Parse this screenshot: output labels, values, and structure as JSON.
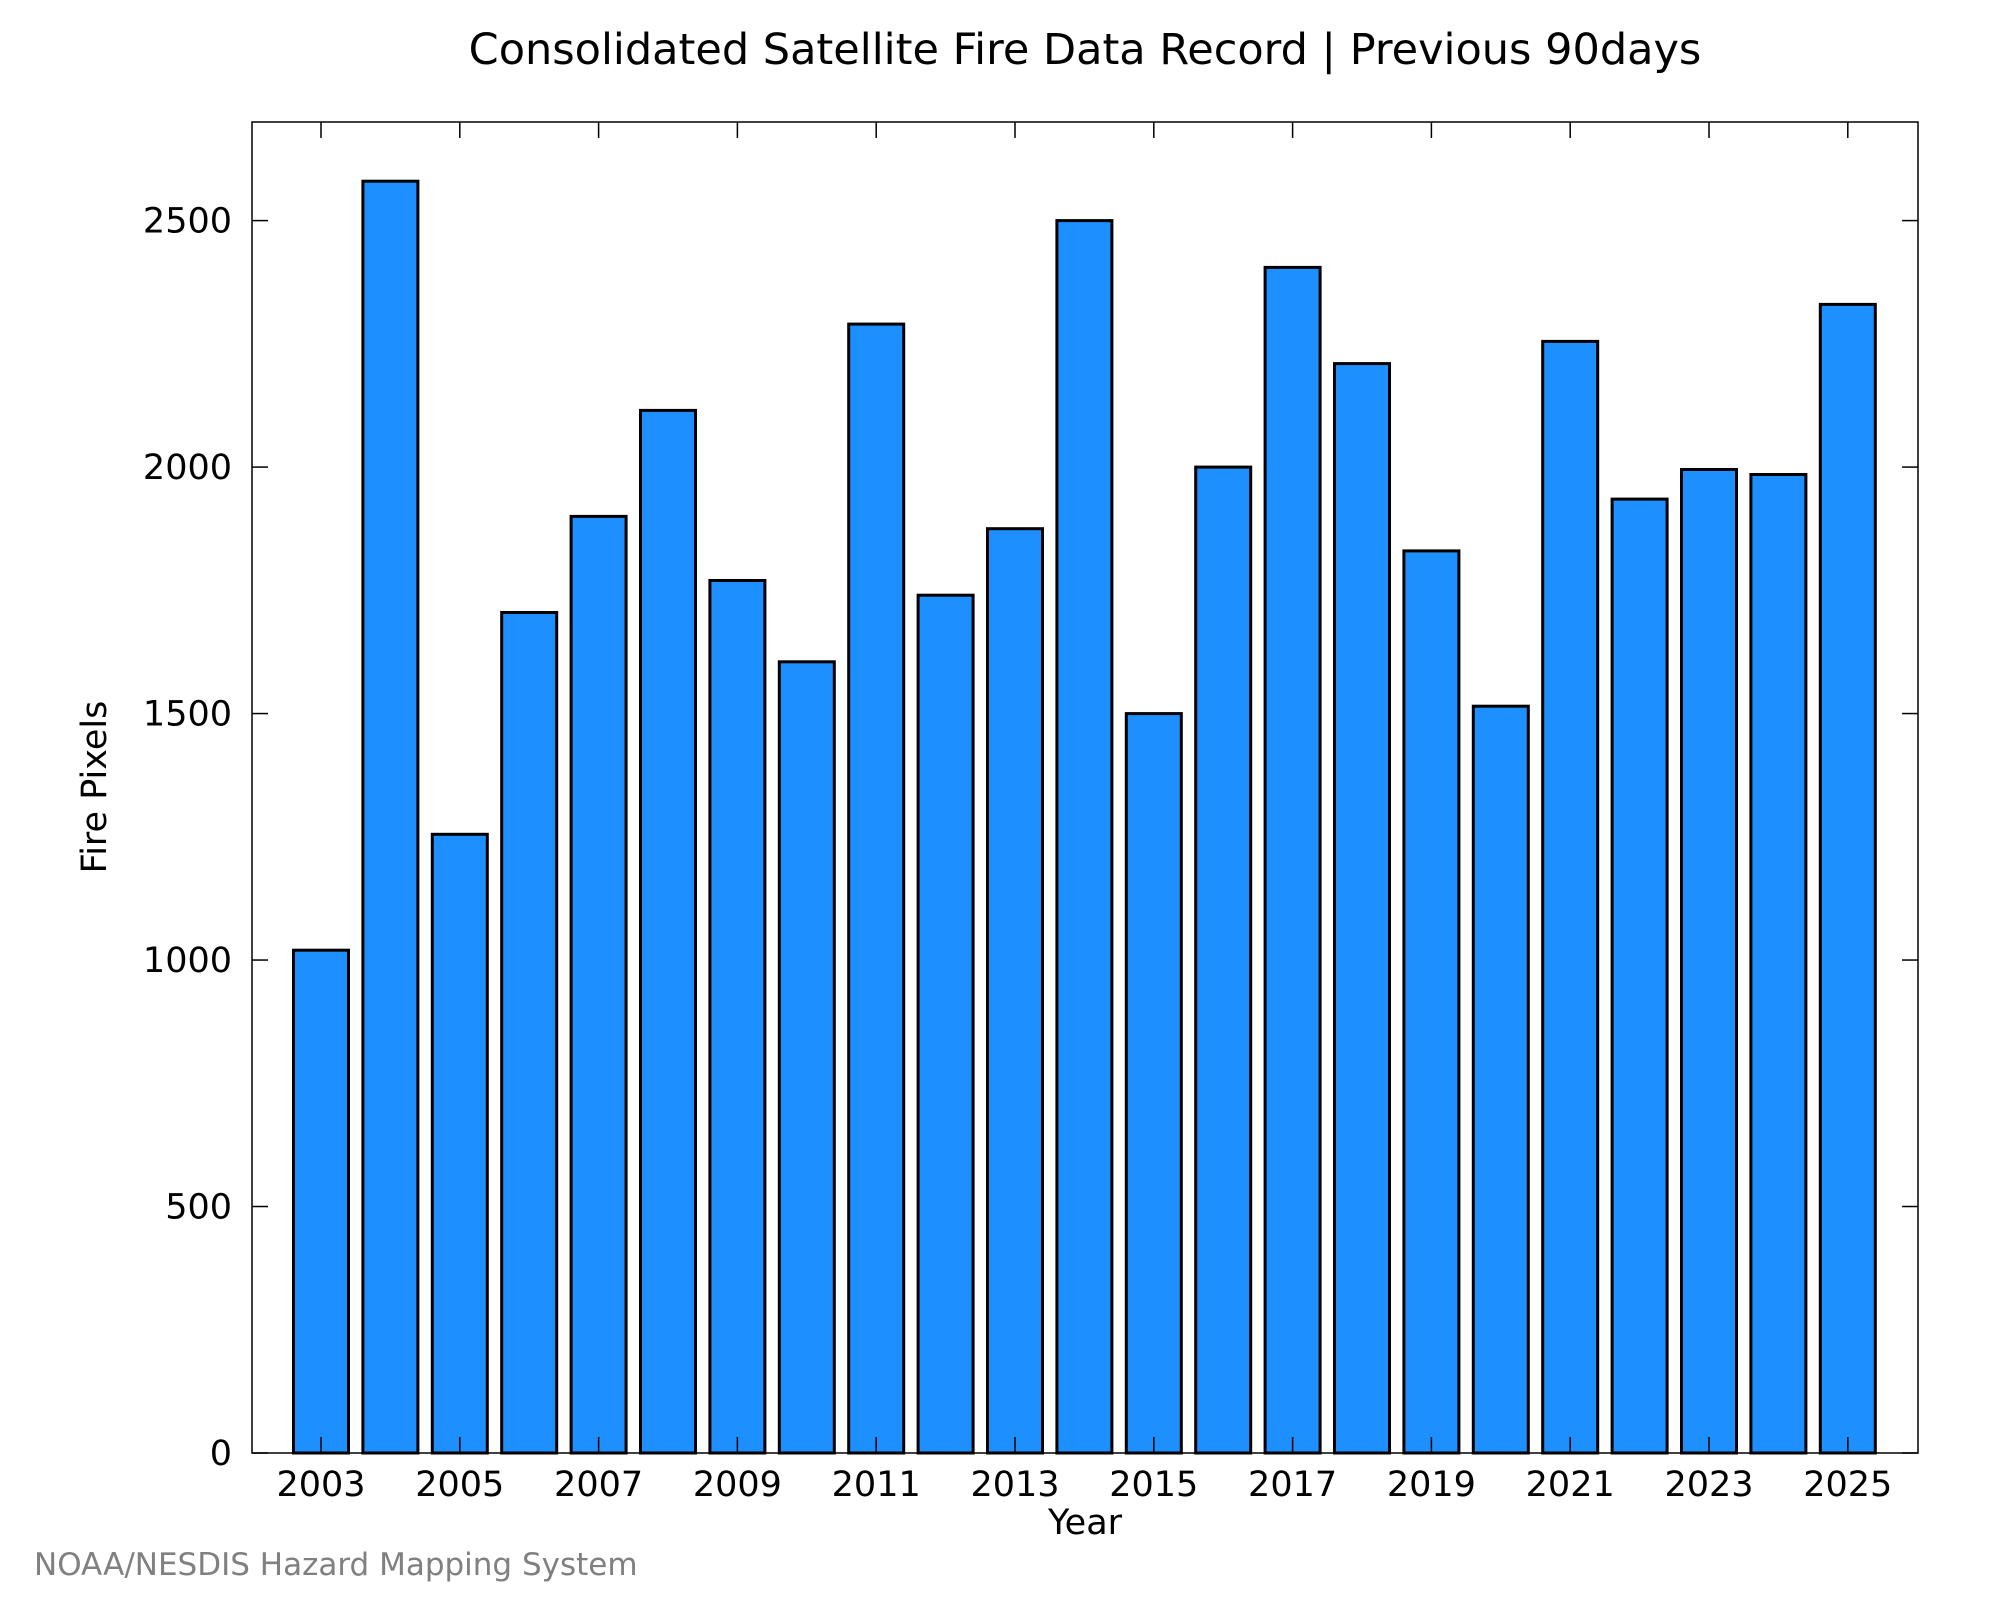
{
  "chart_data": {
    "type": "bar",
    "title": "Consolidated Satellite Fire Data Record | Previous 90days",
    "xlabel": "Year",
    "ylabel": "Fire Pixels",
    "categories": [
      "2003",
      "2004",
      "2005",
      "2006",
      "2007",
      "2008",
      "2009",
      "2010",
      "2011",
      "2012",
      "2013",
      "2014",
      "2015",
      "2016",
      "2017",
      "2018",
      "2019",
      "2020",
      "2021",
      "2022",
      "2023",
      "2024",
      "2025"
    ],
    "x_tick_labels": [
      "2003",
      "2005",
      "2007",
      "2009",
      "2011",
      "2013",
      "2015",
      "2017",
      "2019",
      "2021",
      "2023",
      "2025"
    ],
    "values": [
      1020,
      2580,
      1255,
      1705,
      1900,
      2115,
      1770,
      1605,
      2290,
      1740,
      1875,
      2500,
      1500,
      2000,
      2405,
      2210,
      1830,
      1515,
      2255,
      1935,
      1995,
      1985,
      2330
    ],
    "ylim": [
      0,
      2700
    ],
    "y_ticks": [
      0,
      500,
      1000,
      1500,
      2000,
      2500
    ],
    "bar_color": "#1e8fff",
    "bar_edge_color": "#000000",
    "grid": false,
    "legend": "none"
  },
  "credit": "NOAA/NESDIS Hazard Mapping System"
}
